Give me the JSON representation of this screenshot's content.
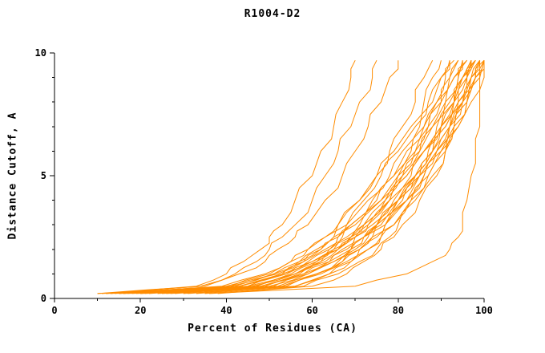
{
  "chart_data": {
    "type": "line",
    "title": "R1004-D2",
    "xlabel": "Percent of Residues (CA)",
    "ylabel": "Distance Cutoff, A",
    "xlim": [
      0,
      100
    ],
    "ylim": [
      0,
      10
    ],
    "x_major_ticks": [
      0,
      20,
      40,
      60,
      80,
      100
    ],
    "x_minor_step": 10,
    "y_major_ticks": [
      0,
      5,
      10
    ],
    "y_minor_step": 1,
    "grid": false,
    "legend": null,
    "line_color": "#ff8c00",
    "axis_color": "#000000",
    "y_levels": [
      0.2,
      0.5,
      1,
      1.5,
      2,
      2.5,
      3,
      4,
      5,
      6,
      7,
      8,
      9,
      9.7
    ],
    "series": [
      {
        "x": [
          10,
          35,
          43,
          49,
          52,
          56,
          59,
          63,
          67,
          70,
          73,
          76,
          78,
          80
        ]
      },
      {
        "x": [
          13,
          33,
          40,
          44,
          48,
          50,
          53,
          56,
          60,
          62,
          65,
          67,
          69,
          70
        ]
      },
      {
        "x": [
          12,
          34,
          42,
          47,
          50,
          53,
          56,
          60,
          63,
          66,
          69,
          71,
          74,
          75
        ]
      },
      {
        "x": [
          15,
          41,
          50,
          55,
          59,
          63,
          66,
          71,
          75,
          78,
          81,
          84,
          86,
          88
        ]
      },
      {
        "x": [
          11,
          39,
          49,
          55,
          59,
          63,
          66,
          71,
          75,
          79,
          83,
          86,
          88,
          90
        ]
      },
      {
        "x": [
          14,
          42,
          51,
          57,
          61,
          65,
          68,
          73,
          78,
          81,
          85,
          88,
          90,
          92
        ]
      },
      {
        "x": [
          16,
          43,
          53,
          58,
          63,
          66,
          69,
          75,
          79,
          82,
          86,
          89,
          91,
          93
        ]
      },
      {
        "x": [
          12,
          41,
          51,
          57,
          62,
          66,
          69,
          74,
          79,
          83,
          86,
          89,
          92,
          94
        ]
      },
      {
        "x": [
          18,
          45,
          54,
          60,
          64,
          68,
          71,
          76,
          80,
          84,
          87,
          90,
          92,
          94
        ]
      },
      {
        "x": [
          20,
          47,
          56,
          61,
          66,
          69,
          72,
          77,
          81,
          85,
          88,
          91,
          93,
          95
        ]
      },
      {
        "x": [
          15,
          43,
          53,
          59,
          64,
          67,
          70,
          76,
          80,
          84,
          87,
          90,
          93,
          95
        ]
      },
      {
        "x": [
          22,
          48,
          57,
          63,
          67,
          70,
          73,
          78,
          82,
          86,
          89,
          92,
          94,
          96
        ]
      },
      {
        "x": [
          17,
          45,
          55,
          61,
          65,
          69,
          72,
          77,
          81,
          85,
          88,
          91,
          94,
          96
        ]
      },
      {
        "x": [
          25,
          51,
          59,
          65,
          69,
          72,
          75,
          80,
          84,
          87,
          90,
          93,
          95,
          97
        ]
      },
      {
        "x": [
          19,
          47,
          56,
          62,
          66,
          70,
          73,
          78,
          83,
          86,
          90,
          93,
          95,
          97
        ]
      },
      {
        "x": [
          28,
          53,
          61,
          66,
          70,
          73,
          76,
          80,
          84,
          88,
          90,
          93,
          95,
          97
        ]
      },
      {
        "x": [
          13,
          43,
          54,
          60,
          65,
          69,
          72,
          78,
          82,
          86,
          90,
          93,
          96,
          98
        ]
      },
      {
        "x": [
          24,
          50,
          59,
          65,
          69,
          72,
          75,
          80,
          84,
          88,
          91,
          94,
          96,
          98
        ]
      },
      {
        "x": [
          30,
          54,
          62,
          68,
          71,
          75,
          77,
          82,
          85,
          89,
          92,
          94,
          96,
          98
        ]
      },
      {
        "x": [
          21,
          49,
          58,
          64,
          68,
          72,
          75,
          80,
          85,
          88,
          92,
          95,
          97,
          99
        ]
      },
      {
        "x": [
          27,
          53,
          61,
          67,
          71,
          74,
          77,
          82,
          86,
          89,
          92,
          95,
          97,
          99
        ]
      },
      {
        "x": [
          33,
          56,
          64,
          69,
          73,
          76,
          79,
          83,
          87,
          90,
          93,
          95,
          98,
          99
        ]
      },
      {
        "x": [
          16,
          46,
          56,
          62,
          66,
          70,
          74,
          79,
          84,
          88,
          91,
          94,
          97,
          99
        ]
      },
      {
        "x": [
          35,
          58,
          66,
          71,
          75,
          78,
          80,
          84,
          88,
          91,
          94,
          96,
          99,
          100
        ]
      },
      {
        "x": [
          26,
          52,
          61,
          67,
          71,
          74,
          77,
          82,
          86,
          90,
          93,
          96,
          98,
          100
        ]
      },
      {
        "x": [
          31,
          56,
          64,
          69,
          73,
          76,
          79,
          83,
          87,
          91,
          93,
          96,
          98,
          100
        ]
      },
      {
        "x": [
          20,
          48,
          58,
          64,
          69,
          72,
          75,
          81,
          85,
          89,
          92,
          95,
          98,
          100
        ]
      },
      {
        "x": [
          38,
          60,
          68,
          72,
          76,
          79,
          81,
          85,
          89,
          91,
          94,
          97,
          99,
          100
        ]
      },
      {
        "x": [
          36,
          70,
          82,
          88,
          92,
          94,
          95,
          96,
          97,
          98,
          99,
          99,
          100,
          100
        ]
      },
      {
        "x": [
          10,
          40,
          52,
          58,
          62,
          65,
          68,
          72,
          76,
          80,
          84,
          87,
          90,
          92
        ]
      }
    ]
  }
}
